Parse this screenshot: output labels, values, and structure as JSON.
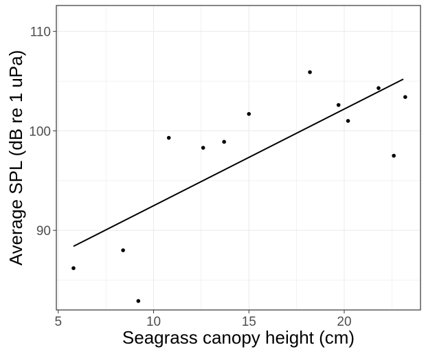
{
  "chart_data": {
    "type": "scatter",
    "title": "",
    "xlabel": "Seagrass canopy height (cm)",
    "ylabel": "Average SPL (dB re 1 uPa)",
    "xlim": [
      4.9,
      24.0
    ],
    "ylim": [
      82.0,
      112.6
    ],
    "x_ticks": [
      5,
      10,
      15,
      20
    ],
    "y_ticks": [
      90,
      100,
      110
    ],
    "x_minor_ticks": [
      7.5,
      12.5,
      17.5,
      22.5
    ],
    "y_minor_ticks": [
      85,
      95,
      105
    ],
    "grid": true,
    "legend": "none",
    "series": [
      {
        "x": [
          5.8,
          8.4,
          9.2,
          10.8,
          12.6,
          13.7,
          15.0,
          18.2,
          19.7,
          20.2,
          21.8,
          22.6,
          23.2
        ],
        "y": [
          86.2,
          88.0,
          82.9,
          99.3,
          98.3,
          98.9,
          101.7,
          105.9,
          102.6,
          101.0,
          104.3,
          97.5,
          103.4
        ]
      }
    ],
    "trend_line": {
      "x": [
        5.8,
        23.1
      ],
      "y": [
        88.4,
        105.2
      ]
    },
    "colors": {
      "points": "#000000",
      "line": "#000000",
      "grid": "#ebebeb",
      "panel_border": "#333333",
      "tick_text": "#4d4d4d"
    }
  }
}
